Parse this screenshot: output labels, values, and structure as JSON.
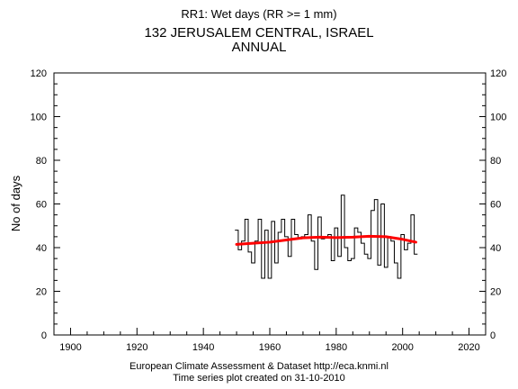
{
  "header": {
    "subtitle": "RR1: Wet days (RR >= 1 mm)",
    "title_line1": "132 JERUSALEM CENTRAL, ISRAEL",
    "title_line2": "ANNUAL"
  },
  "footer": {
    "line1": "European Climate Assessment & Dataset  http://eca.knmi.nl",
    "line2": "Time series plot created on 31-10-2010"
  },
  "chart_data": {
    "type": "line",
    "style": "step",
    "ylabel": "No of days",
    "xlim": [
      1895,
      2025
    ],
    "ylim": [
      0,
      120
    ],
    "x_ticks": [
      1900,
      1920,
      1940,
      1960,
      1980,
      2000,
      2020
    ],
    "y_ticks": [
      0,
      20,
      40,
      60,
      80,
      100,
      120
    ],
    "y_ticks_right": true,
    "series": [
      {
        "color": "#000000",
        "x": [
          1950,
          1951,
          1952,
          1953,
          1954,
          1955,
          1956,
          1957,
          1958,
          1959,
          1960,
          1961,
          1962,
          1963,
          1964,
          1965,
          1966,
          1967,
          1968,
          1969,
          1970,
          1971,
          1972,
          1973,
          1974,
          1975,
          1976,
          1977,
          1978,
          1979,
          1980,
          1981,
          1982,
          1983,
          1984,
          1985,
          1986,
          1987,
          1988,
          1989,
          1990,
          1991,
          1992,
          1993,
          1994,
          1995,
          1996,
          1997,
          1998,
          1999,
          2000,
          2001,
          2002,
          2003,
          2004
        ],
        "values": [
          48,
          39,
          43,
          53,
          38,
          33,
          43,
          53,
          26,
          48,
          26,
          52,
          33,
          47,
          53,
          45,
          36,
          53,
          46,
          44,
          45,
          46,
          55,
          43,
          30,
          54,
          44,
          45,
          46,
          34,
          49,
          36,
          64,
          40,
          34,
          35,
          49,
          47,
          42,
          37,
          35,
          57,
          62,
          32,
          60,
          31,
          45,
          43,
          33,
          26,
          46,
          39,
          42,
          55,
          37
        ]
      },
      {
        "color": "#ff0000",
        "x": [
          1950,
          1955,
          1960,
          1965,
          1970,
          1975,
          1980,
          1985,
          1990,
          1995,
          2000,
          2004
        ],
        "values": [
          41.5,
          42,
          42.5,
          43.5,
          44.5,
          44.8,
          44.6,
          44.8,
          45.2,
          45,
          43.8,
          42.5
        ]
      }
    ]
  }
}
